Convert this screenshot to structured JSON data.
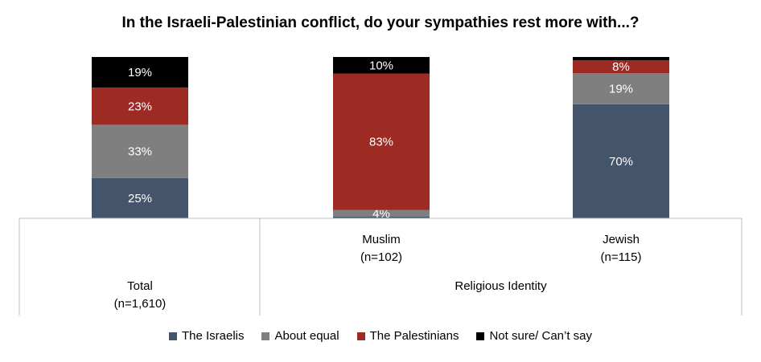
{
  "chart_data": {
    "type": "bar",
    "stacked": true,
    "title": "In the Israeli-Palestinian conflict, do your sympathies rest more with...?",
    "bars": [
      {
        "group": "Total",
        "category": "Total",
        "n": "(n=1,610)"
      },
      {
        "group": "Religious Identity",
        "category": "Muslim",
        "n": "(n=102)"
      },
      {
        "group": "Religious Identity",
        "category": "Jewish",
        "n": "(n=115)"
      }
    ],
    "groups": [
      "Total",
      "Religious Identity"
    ],
    "series": [
      {
        "name": "The Israelis",
        "color": "#44546a",
        "values": [
          25,
          1,
          70
        ],
        "labels": [
          "25%",
          "",
          "70%"
        ]
      },
      {
        "name": "About equal",
        "color": "#7f7f7f",
        "values": [
          33,
          4,
          19
        ],
        "labels": [
          "33%",
          "4%",
          "19%"
        ]
      },
      {
        "name": "The Palestinians",
        "color": "#9e2a24",
        "values": [
          23,
          83,
          8
        ],
        "labels": [
          "23%",
          "83%",
          "8%"
        ]
      },
      {
        "name": "Not sure/ Can’t say",
        "color": "#000000",
        "values": [
          19,
          10,
          2
        ],
        "labels": [
          "19%",
          "10%",
          ""
        ]
      }
    ],
    "ylim": [
      0,
      100
    ],
    "legend_position": "bottom",
    "grid": false
  }
}
